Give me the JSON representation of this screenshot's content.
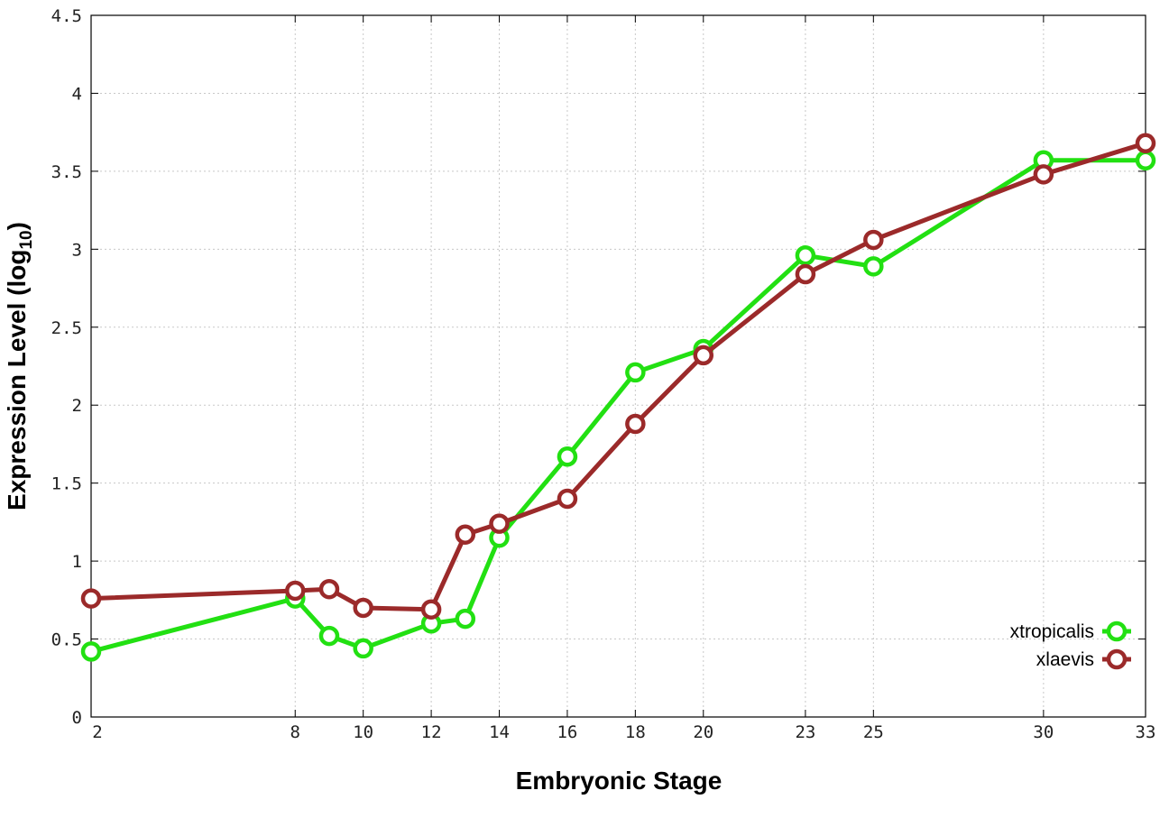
{
  "chart_data": {
    "type": "line",
    "xlabel": "Embryonic Stage",
    "ylabel_main": "Expression Level (log",
    "ylabel_sub": "10",
    "ylabel_close": ")",
    "xlim": [
      2,
      33
    ],
    "ylim": [
      0,
      4.5
    ],
    "grid": true,
    "legend_position": "bottom-right",
    "x_ticks": [
      2,
      8,
      10,
      12,
      14,
      16,
      18,
      20,
      23,
      25,
      30,
      33
    ],
    "y_ticks": [
      0,
      0.5,
      1,
      1.5,
      2,
      2.5,
      3,
      3.5,
      4,
      4.5
    ],
    "y_tick_labels": [
      "0",
      "0.5",
      "1",
      "1.5",
      "2",
      "2.5",
      "3",
      "3.5",
      "4",
      "4.5"
    ],
    "series": [
      {
        "name": "xtropicalis",
        "color": "#22e012",
        "x": [
          2,
          8,
          9,
          10,
          12,
          13,
          14,
          16,
          18,
          20,
          23,
          25,
          30,
          33
        ],
        "y": [
          0.42,
          0.76,
          0.52,
          0.44,
          0.6,
          0.63,
          1.15,
          1.67,
          2.21,
          2.36,
          2.96,
          2.89,
          3.57,
          3.57
        ]
      },
      {
        "name": "xlaevis",
        "color": "#9b2a2a",
        "x": [
          2,
          8,
          9,
          10,
          12,
          13,
          14,
          16,
          18,
          20,
          23,
          25,
          30,
          33
        ],
        "y": [
          0.76,
          0.81,
          0.82,
          0.7,
          0.69,
          1.17,
          1.24,
          1.4,
          1.88,
          2.32,
          2.84,
          3.06,
          3.48,
          3.68
        ]
      }
    ]
  }
}
